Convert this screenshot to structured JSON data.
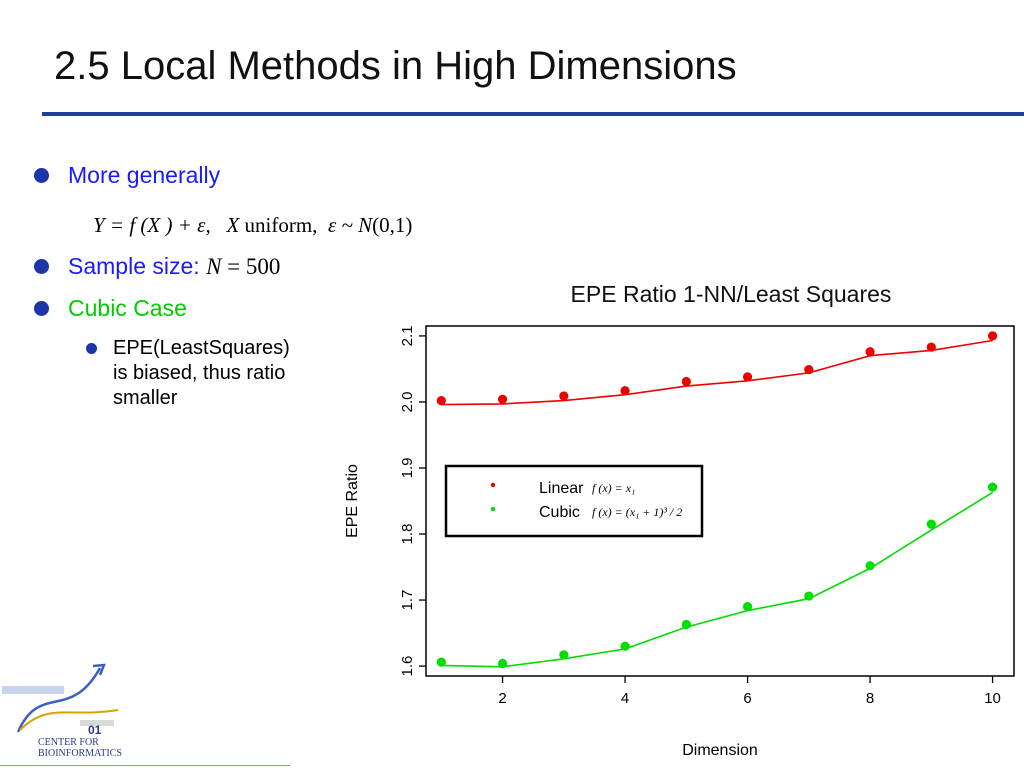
{
  "slide": {
    "title": "2.5 Local Methods in High Dimensions",
    "bullets": {
      "b1": "More generally",
      "b2_label": "Sample size: ",
      "b2_var": "N",
      "b2_value": " = 500",
      "b3": "Cubic Case",
      "sub": [
        "EPE(LeastSquares)",
        "is biased, thus ratio",
        "smaller"
      ]
    },
    "formula": {
      "lhs": "Y = f (X ) + ε,",
      "x": "X",
      "uniform": "uniform,",
      "eps": "ε ~ ",
      "n": "N",
      "args": "(0,1)"
    },
    "logo": {
      "line1": "CENTER FOR",
      "line2": "BIOINFORMATICS",
      "mark": "01"
    }
  },
  "colors": {
    "title_rule": "#1f3fa0",
    "blue_text": "#1a1aff",
    "green_text": "#00cc00",
    "bullet": "#1c35a8",
    "linear": "#ee0000",
    "cubic": "#00dd00"
  },
  "chart_data": {
    "type": "scatter",
    "title": "EPE Ratio 1-NN/Least Squares",
    "xlabel": "Dimension",
    "ylabel": "EPE Ratio",
    "xlim": [
      0.75,
      10.35
    ],
    "ylim": [
      1.585,
      2.115
    ],
    "xticks": [
      2,
      4,
      6,
      8,
      10
    ],
    "yticks": [
      1.6,
      1.7,
      1.8,
      1.9,
      2.0,
      2.1
    ],
    "ytick_labels": [
      "1.6",
      "1.7",
      "1.8",
      "1.9",
      "2.0",
      "2.1"
    ],
    "x": [
      1,
      2,
      3,
      4,
      5,
      6,
      7,
      8,
      9,
      10
    ],
    "series": [
      {
        "name": "Linear",
        "formula": "f (x) = x₁",
        "color": "#ee0000",
        "points": [
          2.002,
          2.004,
          2.009,
          2.017,
          2.031,
          2.038,
          2.049,
          2.076,
          2.083,
          2.1
        ],
        "smooth": [
          1.996,
          1.997,
          2.002,
          2.011,
          2.024,
          2.032,
          2.044,
          2.07,
          2.078,
          2.093
        ]
      },
      {
        "name": "Cubic",
        "formula": "f (x) = (x₁ + 1)³ / 2",
        "color": "#00dd00",
        "points": [
          1.606,
          1.604,
          1.617,
          1.63,
          1.663,
          1.69,
          1.706,
          1.752,
          1.815,
          1.871
        ],
        "smooth": [
          1.601,
          1.599,
          1.611,
          1.626,
          1.659,
          1.684,
          1.702,
          1.748,
          1.806,
          1.863
        ]
      }
    ],
    "legend": "inside-center-left"
  }
}
